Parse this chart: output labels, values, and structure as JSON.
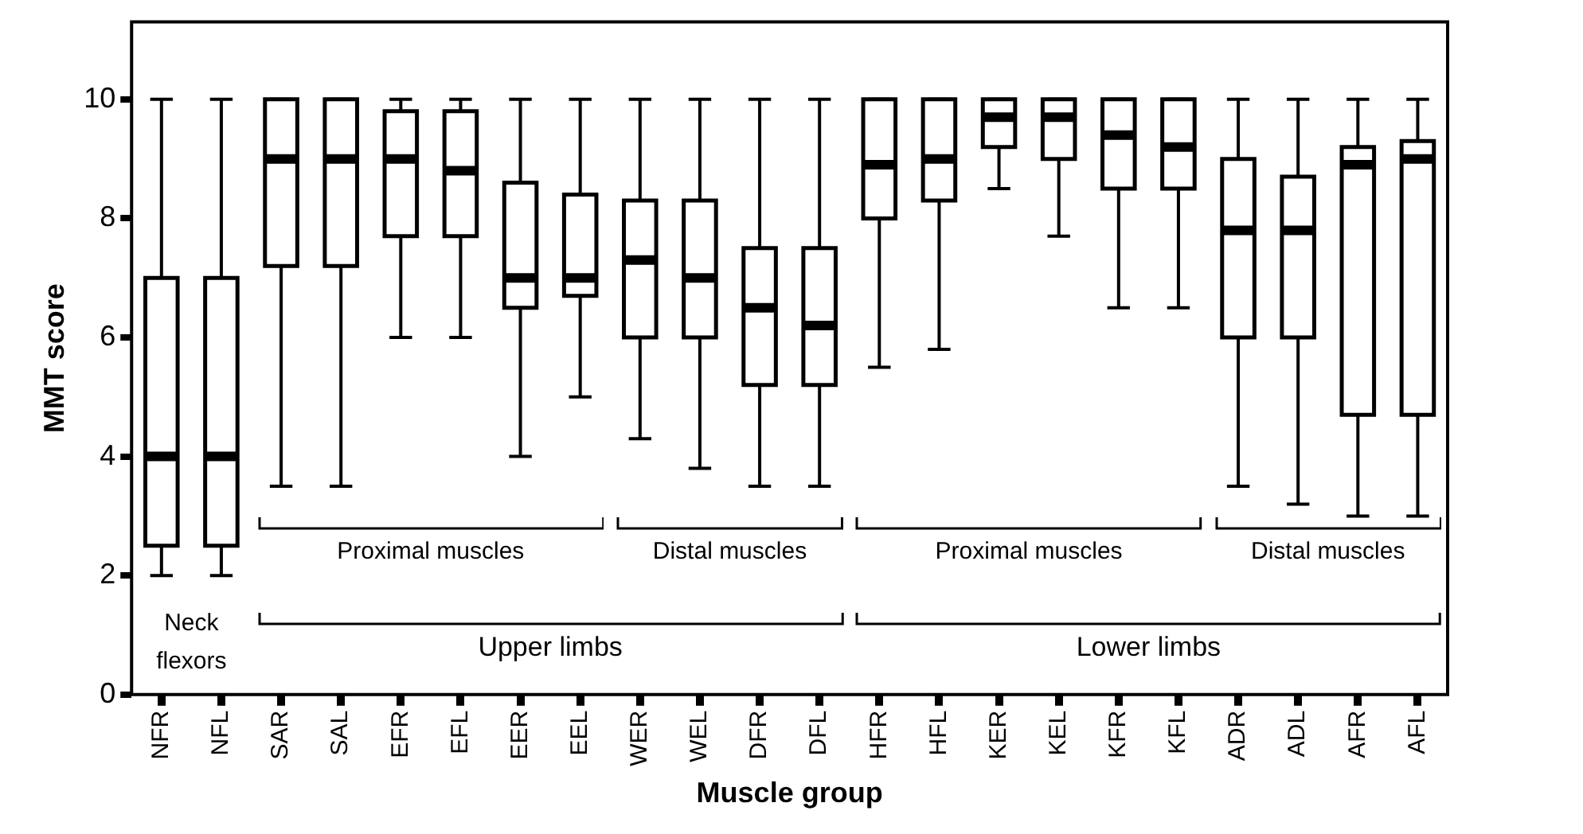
{
  "chart_data": {
    "type": "box",
    "xlabel": "Muscle group",
    "ylabel": "MMT score",
    "categories": [
      "NFR",
      "NFL",
      "SAR",
      "SAL",
      "EFR",
      "EFL",
      "EER",
      "EEL",
      "WER",
      "WEL",
      "DFR",
      "DFL",
      "HFR",
      "HFL",
      "KER",
      "KEL",
      "KFR",
      "KFL",
      "ADR",
      "ADL",
      "AFR",
      "AFL"
    ],
    "boxes": [
      {
        "low": 2,
        "q1": 2.5,
        "median": 4,
        "q3": 7,
        "high": 10
      },
      {
        "low": 2,
        "q1": 2.5,
        "median": 4,
        "q3": 7,
        "high": 10
      },
      {
        "low": 3.5,
        "q1": 7.2,
        "median": 9,
        "q3": 10,
        "high": 10
      },
      {
        "low": 3.5,
        "q1": 7.2,
        "median": 9,
        "q3": 10,
        "high": 10
      },
      {
        "low": 6,
        "q1": 7.7,
        "median": 9,
        "q3": 9.8,
        "high": 10
      },
      {
        "low": 6,
        "q1": 7.7,
        "median": 8.8,
        "q3": 9.8,
        "high": 10
      },
      {
        "low": 4,
        "q1": 6.5,
        "median": 7,
        "q3": 8.6,
        "high": 10
      },
      {
        "low": 5,
        "q1": 6.7,
        "median": 7,
        "q3": 8.4,
        "high": 10
      },
      {
        "low": 4.3,
        "q1": 6,
        "median": 7.3,
        "q3": 8.3,
        "high": 10
      },
      {
        "low": 3.8,
        "q1": 6,
        "median": 7,
        "q3": 8.3,
        "high": 10
      },
      {
        "low": 3.5,
        "q1": 5.2,
        "median": 6.5,
        "q3": 7.5,
        "high": 10
      },
      {
        "low": 3.5,
        "q1": 5.2,
        "median": 6.2,
        "q3": 7.5,
        "high": 10
      },
      {
        "low": 5.5,
        "q1": 8,
        "median": 8.9,
        "q3": 10,
        "high": 10
      },
      {
        "low": 5.8,
        "q1": 8.3,
        "median": 9,
        "q3": 10,
        "high": 10
      },
      {
        "low": 8.5,
        "q1": 9.2,
        "median": 9.7,
        "q3": 10,
        "high": 10
      },
      {
        "low": 7.7,
        "q1": 9,
        "median": 9.7,
        "q3": 10,
        "high": 10
      },
      {
        "low": 6.5,
        "q1": 8.5,
        "median": 9.4,
        "q3": 10,
        "high": 10
      },
      {
        "low": 6.5,
        "q1": 8.5,
        "median": 9.2,
        "q3": 10,
        "high": 10
      },
      {
        "low": 3.5,
        "q1": 6,
        "median": 7.8,
        "q3": 9,
        "high": 10
      },
      {
        "low": 3.2,
        "q1": 6,
        "median": 7.8,
        "q3": 8.7,
        "high": 10
      },
      {
        "low": 3,
        "q1": 4.7,
        "median": 8.9,
        "q3": 9.2,
        "high": 10
      },
      {
        "low": 3,
        "q1": 4.7,
        "median": 9,
        "q3": 9.3,
        "high": 10
      }
    ],
    "color": "#000000",
    "ylim": [
      0,
      11.3
    ],
    "yticks": [
      0,
      2,
      4,
      6,
      8,
      10
    ],
    "legend": false,
    "annotations": [
      "Neck flexors",
      "Proximal muscles",
      "Distal muscles",
      "Upper limbs",
      "Proximal muscles",
      "Distal muscles",
      "Lower limbs"
    ]
  }
}
